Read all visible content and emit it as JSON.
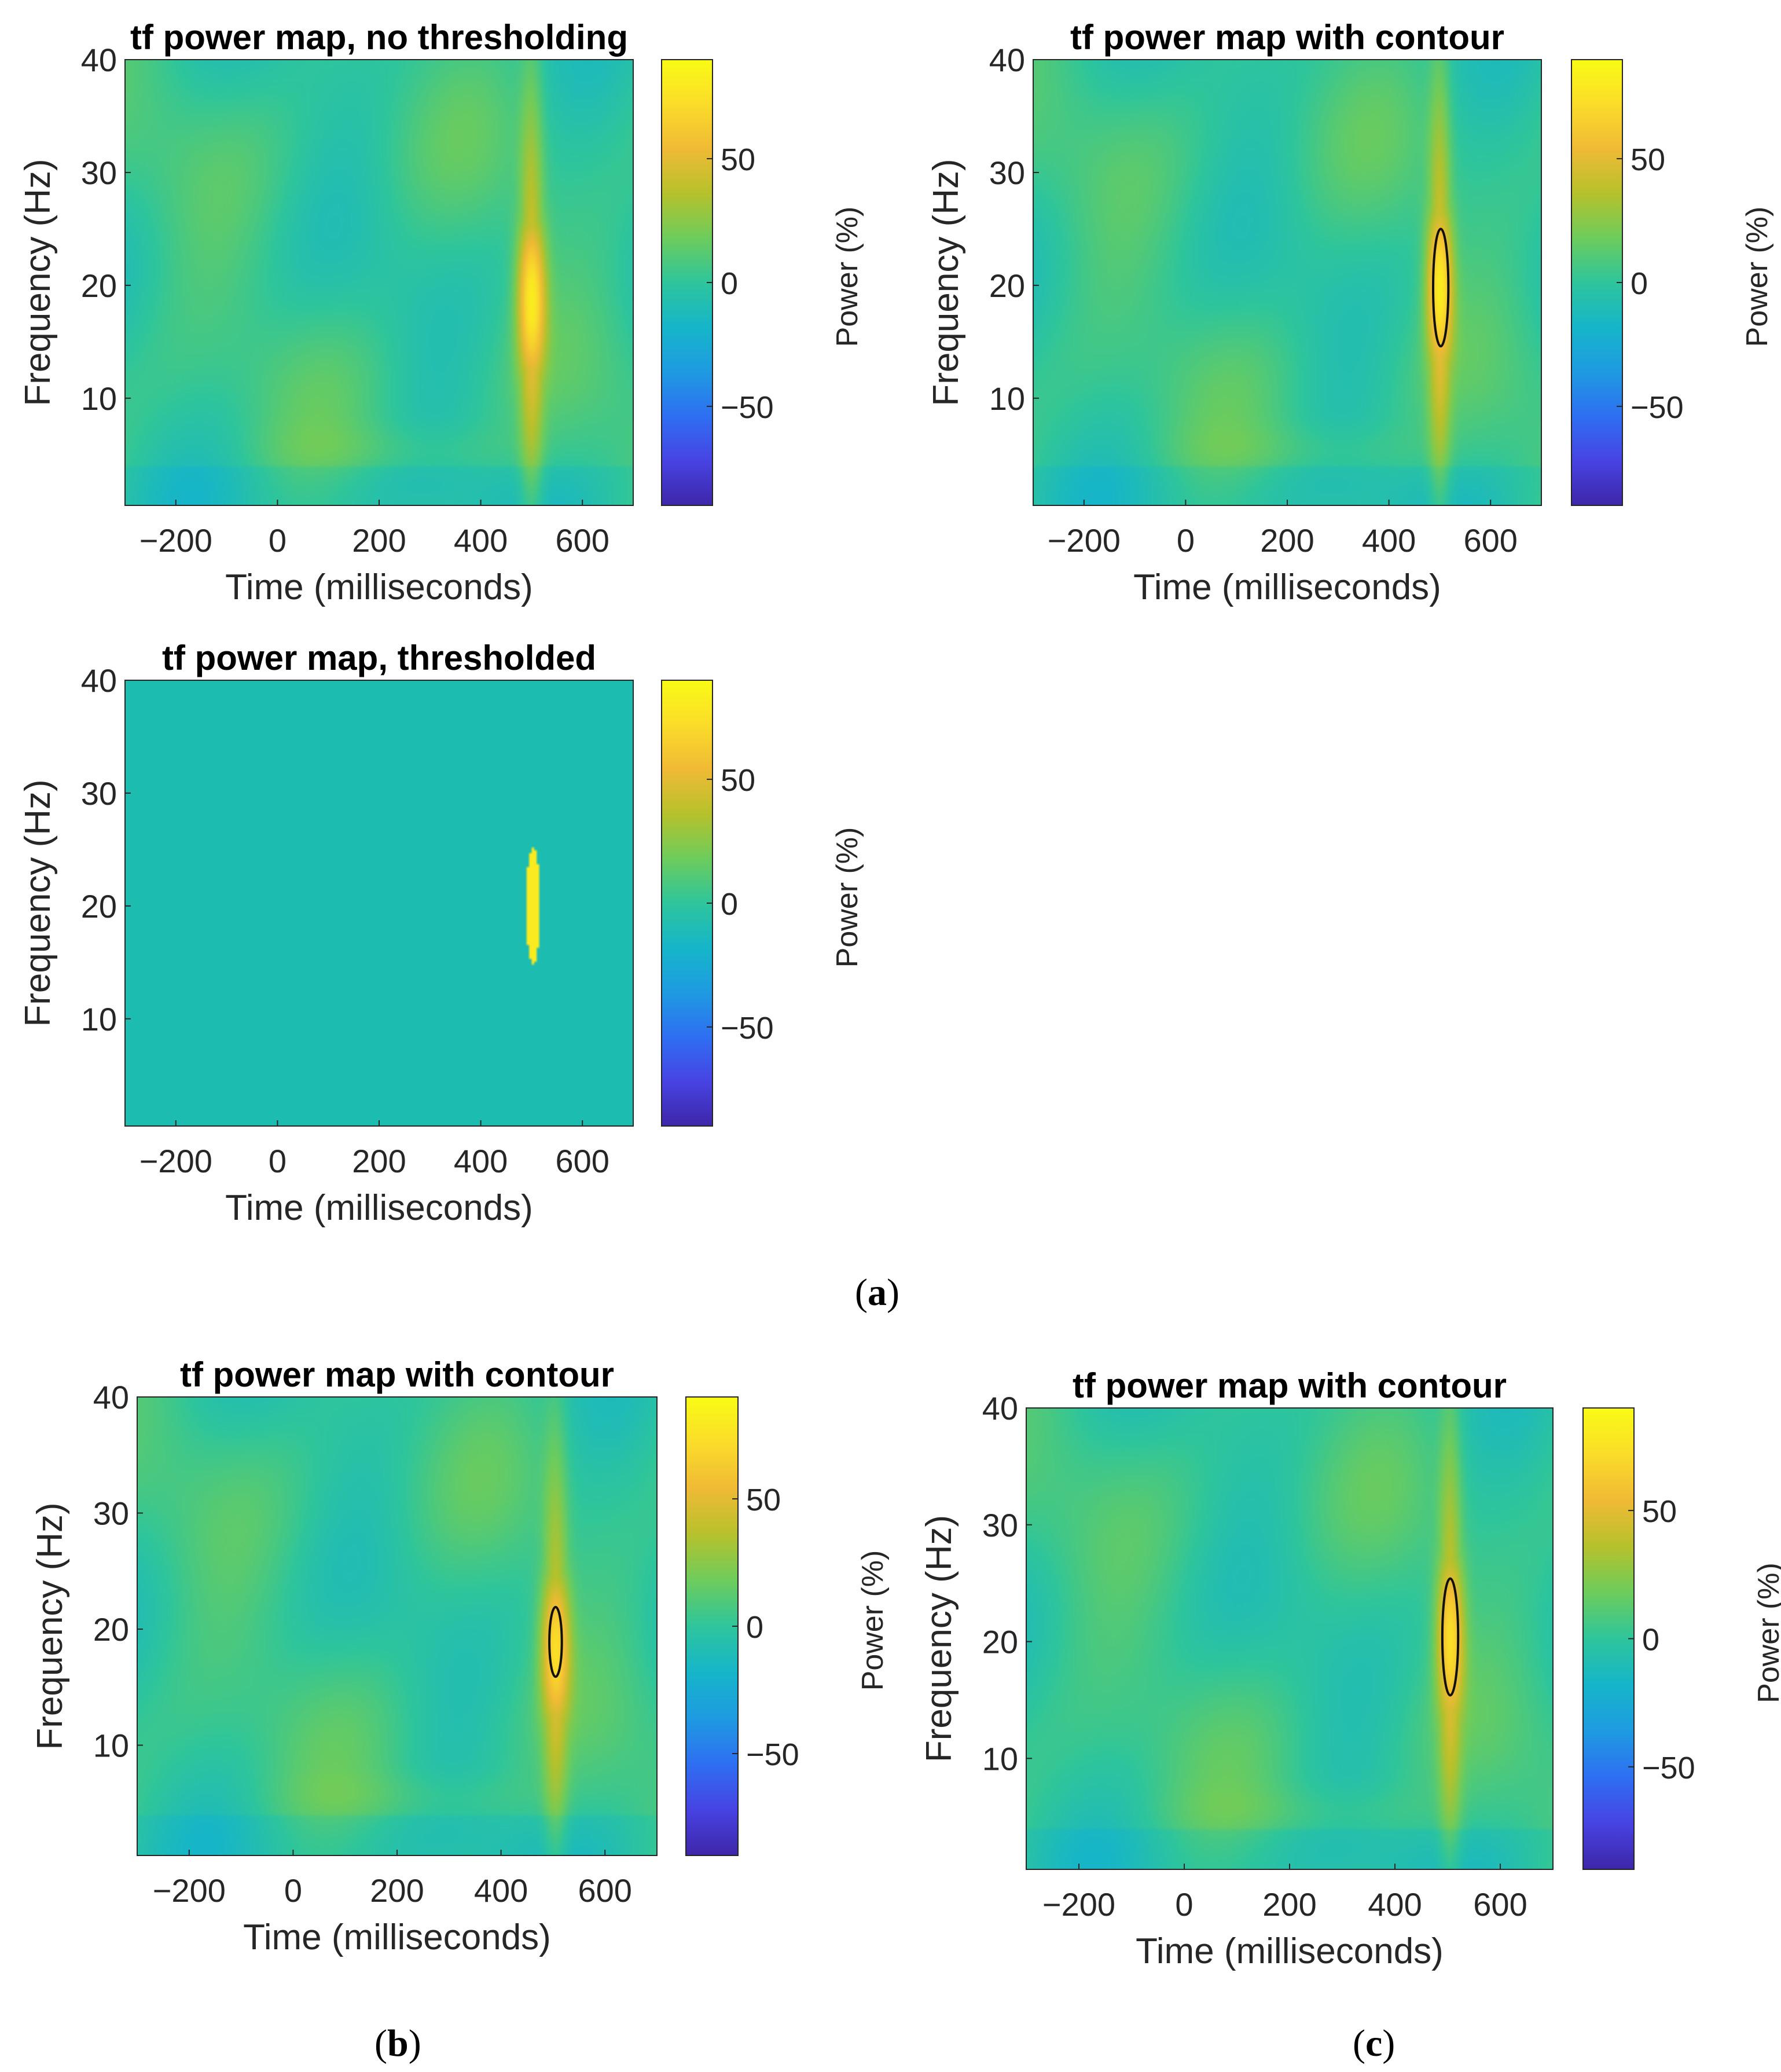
{
  "colors": {
    "background": "#1cbcb0",
    "colormap": [
      "#3e26a8",
      "#4743e3",
      "#2e6ff2",
      "#1e9be1",
      "#16b5c9",
      "#2ec59c",
      "#6dcc5c",
      "#b6c12b",
      "#f0ba35",
      "#fadc29",
      "#f9fb15"
    ],
    "contour": "#111111",
    "text": "#262626",
    "axis": "#262626"
  },
  "panel_labels": {
    "a": "a",
    "b": "b",
    "c": "c"
  },
  "chart_data": [
    {
      "id": "a1",
      "type": "heatmap",
      "title": "tf power map, no thresholding",
      "xlabel": "Time (milliseconds)",
      "ylabel": "Frequency (Hz)",
      "colorbar_label": "Power (%)",
      "xlim": [
        -300,
        700
      ],
      "ylim": [
        0.5,
        40
      ],
      "clim": [
        -90,
        90
      ],
      "xticks": [
        -200,
        0,
        200,
        400,
        600
      ],
      "xtick_labels": [
        "−200",
        "0",
        "200",
        "400",
        "600"
      ],
      "yticks": [
        10,
        20,
        30,
        40
      ],
      "ytick_labels": [
        "10",
        "20",
        "30",
        "40"
      ],
      "cticks": [
        -50,
        0,
        50
      ],
      "ctick_labels": [
        "−50",
        "0",
        "50"
      ],
      "peak": {
        "time": 500,
        "freq": 19,
        "power": 75,
        "time_width": 28,
        "freq_width": 7.5
      },
      "thresholded": false,
      "contour": null
    },
    {
      "id": "a2",
      "type": "heatmap",
      "title": "tf power map with contour",
      "xlabel": "Time (milliseconds)",
      "ylabel": "Frequency (Hz)",
      "colorbar_label": "Power (%)",
      "xlim": [
        -300,
        700
      ],
      "ylim": [
        0.5,
        40
      ],
      "clim": [
        -90,
        90
      ],
      "xticks": [
        -200,
        0,
        200,
        400,
        600
      ],
      "xtick_labels": [
        "−200",
        "0",
        "200",
        "400",
        "600"
      ],
      "yticks": [
        10,
        20,
        30,
        40
      ],
      "ytick_labels": [
        "10",
        "20",
        "30",
        "40"
      ],
      "cticks": [
        -50,
        0,
        50
      ],
      "ctick_labels": [
        "−50",
        "0",
        "50"
      ],
      "peak": {
        "time": 500,
        "freq": 20,
        "power": 76,
        "time_width": 26,
        "freq_width": 7.5
      },
      "thresholded": false,
      "contour": {
        "time": 502,
        "freq": 19.8,
        "time_halfwidth": 15,
        "freq_halfwidth": 5.2
      }
    },
    {
      "id": "a3",
      "type": "heatmap",
      "title": "tf power map, thresholded",
      "xlabel": "Time (milliseconds)",
      "ylabel": "Frequency (Hz)",
      "colorbar_label": "Power (%)",
      "xlim": [
        -300,
        700
      ],
      "ylim": [
        0.5,
        40
      ],
      "clim": [
        -90,
        90
      ],
      "xticks": [
        -200,
        0,
        200,
        400,
        600
      ],
      "xtick_labels": [
        "−200",
        "0",
        "200",
        "400",
        "600"
      ],
      "yticks": [
        10,
        20,
        30,
        40
      ],
      "ytick_labels": [
        "10",
        "20",
        "30",
        "40"
      ],
      "cticks": [
        -50,
        0,
        50
      ],
      "ctick_labels": [
        "−50",
        "0",
        "50"
      ],
      "peak": null,
      "thresholded": true,
      "threshold_blob": {
        "time": 503,
        "freq": 20,
        "time_halfwidth": 14,
        "freq_halfwidth": 5.2,
        "power": 80
      },
      "contour": null
    },
    {
      "id": "b",
      "type": "heatmap",
      "title": "tf power map with contour",
      "xlabel": "Time (milliseconds)",
      "ylabel": "Frequency (Hz)",
      "colorbar_label": "Power (%)",
      "xlim": [
        -300,
        700
      ],
      "ylim": [
        0.5,
        40
      ],
      "clim": [
        -90,
        90
      ],
      "xticks": [
        -200,
        0,
        200,
        400,
        600
      ],
      "xtick_labels": [
        "−200",
        "0",
        "200",
        "400",
        "600"
      ],
      "yticks": [
        10,
        20,
        30,
        40
      ],
      "ytick_labels": [
        "10",
        "20",
        "30",
        "40"
      ],
      "cticks": [
        -50,
        0,
        50
      ],
      "ctick_labels": [
        "−50",
        "0",
        "50"
      ],
      "peak": {
        "time": 505,
        "freq": 18.5,
        "power": 66,
        "time_width": 28,
        "freq_width": 7
      },
      "thresholded": false,
      "contour": {
        "time": 505,
        "freq": 18.9,
        "time_halfwidth": 12,
        "freq_halfwidth": 3
      }
    },
    {
      "id": "c",
      "type": "heatmap",
      "title": "tf power map with contour",
      "xlabel": "Time (milliseconds)",
      "ylabel": "Frequency (Hz)",
      "colorbar_label": "Power (%)",
      "xlim": [
        -300,
        700
      ],
      "ylim": [
        0.5,
        40
      ],
      "clim": [
        -90,
        90
      ],
      "xticks": [
        -200,
        0,
        200,
        400,
        600
      ],
      "xtick_labels": [
        "−200",
        "0",
        "200",
        "400",
        "600"
      ],
      "yticks": [
        10,
        20,
        30,
        40
      ],
      "ytick_labels": [
        "10",
        "20",
        "30",
        "40"
      ],
      "cticks": [
        -50,
        0,
        50
      ],
      "ctick_labels": [
        "−50",
        "0",
        "50"
      ],
      "peak": {
        "time": 505,
        "freq": 20.5,
        "power": 68,
        "time_width": 26,
        "freq_width": 7.5
      },
      "thresholded": false,
      "contour": {
        "time": 505,
        "freq": 20.4,
        "time_halfwidth": 15,
        "freq_halfwidth": 5
      }
    }
  ]
}
